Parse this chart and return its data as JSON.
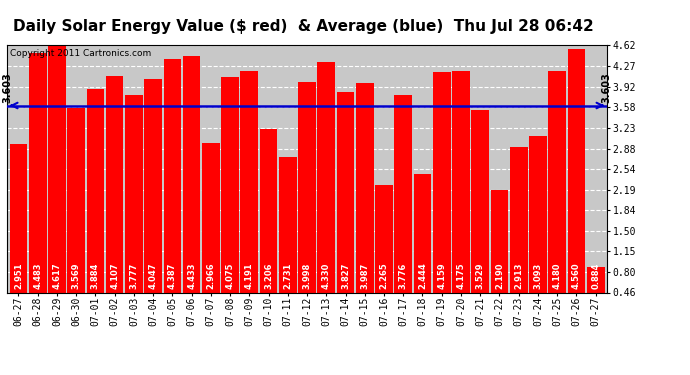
{
  "title": "Daily Solar Energy Value ($ red)  & Average (blue)  Thu Jul 28 06:42",
  "copyright": "Copyright 2011 Cartronics.com",
  "average": 3.603,
  "bar_color": "#ff0000",
  "avg_line_color": "#0000cc",
  "background_color": "#ffffff",
  "plot_bg_color": "#c8c8c8",
  "categories": [
    "06-27",
    "06-28",
    "06-29",
    "06-30",
    "07-01",
    "07-02",
    "07-03",
    "07-04",
    "07-05",
    "07-06",
    "07-07",
    "07-08",
    "07-09",
    "07-10",
    "07-11",
    "07-12",
    "07-13",
    "07-14",
    "07-15",
    "07-16",
    "07-17",
    "07-18",
    "07-19",
    "07-20",
    "07-21",
    "07-22",
    "07-23",
    "07-24",
    "07-25",
    "07-26",
    "07-27"
  ],
  "values": [
    2.951,
    4.483,
    4.617,
    3.569,
    3.884,
    4.107,
    3.777,
    4.047,
    4.387,
    4.433,
    2.966,
    4.075,
    4.191,
    3.206,
    2.731,
    3.998,
    4.33,
    3.827,
    3.987,
    2.265,
    3.776,
    2.444,
    4.159,
    4.175,
    3.529,
    2.19,
    2.913,
    3.093,
    4.18,
    4.56,
    0.884
  ],
  "ylim_min": 0.46,
  "ylim_max": 4.62,
  "yticks": [
    0.46,
    0.8,
    1.15,
    1.5,
    1.84,
    2.19,
    2.54,
    2.88,
    3.23,
    3.58,
    3.92,
    4.27,
    4.62
  ],
  "grid_color": "#ffffff",
  "avg_label": "3.603",
  "title_fontsize": 11,
  "tick_fontsize": 7,
  "bar_value_fontsize": 6,
  "copyright_fontsize": 6.5
}
